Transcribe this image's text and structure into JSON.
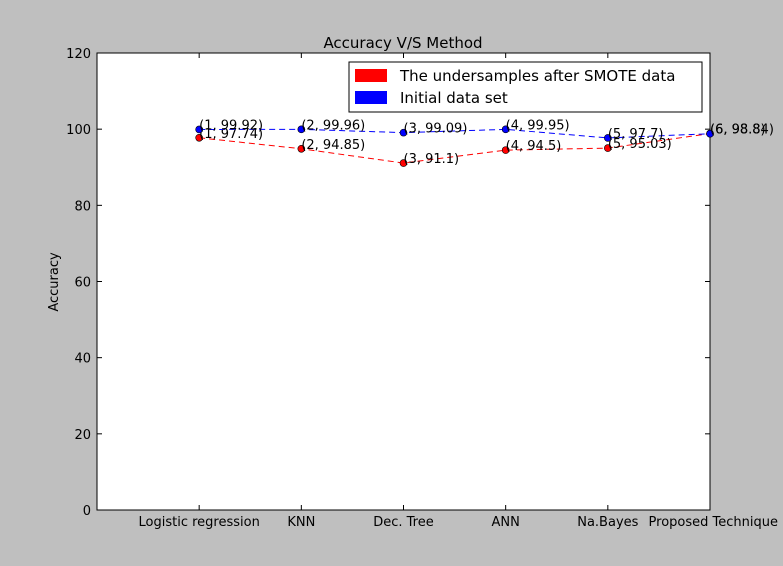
{
  "chart_data": {
    "type": "line",
    "title": "Accuracy V/S Method",
    "xlabel": "",
    "ylabel": "Accuracy",
    "categories": [
      "Logistic regression",
      "KNN",
      "Dec. Tree",
      "ANN",
      "Na.Bayes",
      "Proposed Technique"
    ],
    "x": [
      1,
      2,
      3,
      4,
      5,
      6
    ],
    "xlim": [
      0,
      6
    ],
    "ylim": [
      0,
      120
    ],
    "yticks": [
      0,
      20,
      40,
      60,
      80,
      100,
      120
    ],
    "grid": false,
    "legend_position": "top-right",
    "series": [
      {
        "name": "The undersamples after SMOTE data",
        "color": "#ff0000",
        "values": [
          97.74,
          94.85,
          91.1,
          94.5,
          95.03,
          98.84
        ],
        "labels": [
          "(1, 97.74)",
          "(2, 94.85)",
          "(3, 91.1)",
          "(4, 94.5)",
          "(5, 95.03)",
          "(6, 98.84)"
        ]
      },
      {
        "name": "Initial data set",
        "color": "#0000ff",
        "values": [
          99.92,
          99.96,
          99.09,
          99.95,
          97.7,
          98.8
        ],
        "labels": [
          "(1, 99.92)",
          "(2, 99.96)",
          "(3, 99.09)",
          "(4, 99.95)",
          "(5, 97.7)",
          "(6, 98.8)"
        ]
      }
    ]
  }
}
